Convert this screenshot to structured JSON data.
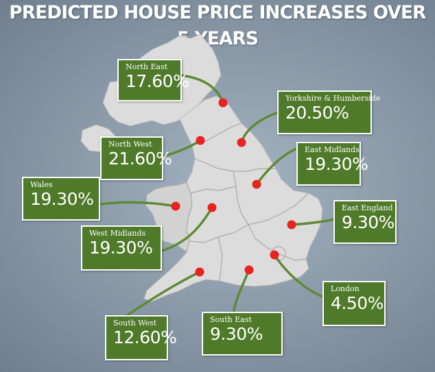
{
  "title": "PREDICTED HOUSE PRICE INCREASES OVER 5 YEARS",
  "colors": {
    "label_bg": "#4f7a2a",
    "connector": "#5e8a33",
    "marker": "#e8231f",
    "land": "#dcdcdc",
    "border": "#a8a8a8",
    "sea": "#8a9aa9"
  },
  "regions": [
    {
      "id": "north-east",
      "name": "North East",
      "value": "17.60%"
    },
    {
      "id": "yorkshire",
      "name": "Yorkshire & Humberside",
      "value": "20.50%"
    },
    {
      "id": "north-west",
      "name": "North West",
      "value": "21.60%"
    },
    {
      "id": "east-midlands",
      "name": "East Midlands",
      "value": "19.30%"
    },
    {
      "id": "wales",
      "name": "Wales",
      "value": "19.30%"
    },
    {
      "id": "east-england",
      "name": "East England",
      "value": "9.30%"
    },
    {
      "id": "west-midlands",
      "name": "West Midlands",
      "value": "19.30%"
    },
    {
      "id": "london",
      "name": "London",
      "value": "4.50%"
    },
    {
      "id": "south-west",
      "name": "South West",
      "value": "12.60%"
    },
    {
      "id": "south-east",
      "name": "South East",
      "value": "9.30%"
    }
  ],
  "chart_data": {
    "type": "table",
    "title": "PREDICTED HOUSE PRICE INCREASES OVER 5 YEARS",
    "categories": [
      "North East",
      "Yorkshire & Humberside",
      "North West",
      "East Midlands",
      "Wales",
      "East England",
      "West Midlands",
      "London",
      "South West",
      "South East"
    ],
    "values": [
      17.6,
      20.5,
      21.6,
      19.3,
      19.3,
      9.3,
      19.3,
      4.5,
      12.6,
      9.3
    ]
  }
}
